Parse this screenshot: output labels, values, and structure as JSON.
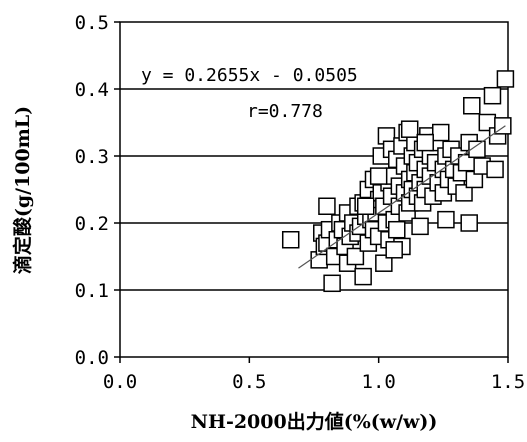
{
  "chart_data": {
    "type": "scatter",
    "xlabel": "NH-2000出力値(%(w/w))",
    "ylabel": "滴定酸(g/100mL)",
    "xlim": [
      0.0,
      1.5
    ],
    "ylim": [
      0.0,
      0.5
    ],
    "x_ticks": [
      "0.0",
      "0.5",
      "1.0",
      "1.5"
    ],
    "y_ticks": [
      "0.0",
      "0.1",
      "0.2",
      "0.3",
      "0.4",
      "0.5"
    ],
    "grid": "horizontal",
    "marker": "open-square",
    "annotations": {
      "equation": "y = 0.2655x - 0.0505",
      "r": "r=0.778"
    },
    "trendline": {
      "slope": 0.2655,
      "intercept": -0.0505,
      "x_range": [
        0.69,
        1.49
      ]
    },
    "points": [
      [
        0.66,
        0.175
      ],
      [
        0.77,
        0.145
      ],
      [
        0.78,
        0.185
      ],
      [
        0.79,
        0.165
      ],
      [
        0.8,
        0.17
      ],
      [
        0.8,
        0.225
      ],
      [
        0.81,
        0.19
      ],
      [
        0.82,
        0.11
      ],
      [
        0.83,
        0.15
      ],
      [
        0.84,
        0.175
      ],
      [
        0.85,
        0.2
      ],
      [
        0.86,
        0.19
      ],
      [
        0.87,
        0.165
      ],
      [
        0.88,
        0.14
      ],
      [
        0.88,
        0.215
      ],
      [
        0.89,
        0.18
      ],
      [
        0.9,
        0.2
      ],
      [
        0.91,
        0.15
      ],
      [
        0.92,
        0.225
      ],
      [
        0.92,
        0.185
      ],
      [
        0.93,
        0.195
      ],
      [
        0.94,
        0.23
      ],
      [
        0.94,
        0.12
      ],
      [
        0.95,
        0.21
      ],
      [
        0.96,
        0.17
      ],
      [
        0.96,
        0.25
      ],
      [
        0.97,
        0.205
      ],
      [
        0.98,
        0.19
      ],
      [
        0.98,
        0.265
      ],
      [
        0.99,
        0.215
      ],
      [
        1.0,
        0.18
      ],
      [
        1.0,
        0.235
      ],
      [
        1.01,
        0.245
      ],
      [
        1.01,
        0.3
      ],
      [
        1.02,
        0.225
      ],
      [
        1.02,
        0.14
      ],
      [
        1.03,
        0.33
      ],
      [
        1.03,
        0.2
      ],
      [
        1.04,
        0.26
      ],
      [
        1.04,
        0.175
      ],
      [
        1.05,
        0.31
      ],
      [
        1.05,
        0.24
      ],
      [
        1.06,
        0.205
      ],
      [
        1.06,
        0.27
      ],
      [
        1.07,
        0.295
      ],
      [
        1.07,
        0.19
      ],
      [
        1.08,
        0.225
      ],
      [
        1.08,
        0.255
      ],
      [
        1.09,
        0.165
      ],
      [
        1.09,
        0.315
      ],
      [
        1.1,
        0.245
      ],
      [
        1.1,
        0.285
      ],
      [
        1.11,
        0.215
      ],
      [
        1.11,
        0.335
      ],
      [
        1.12,
        0.265
      ],
      [
        1.12,
        0.23
      ],
      [
        1.13,
        0.3
      ],
      [
        1.13,
        0.25
      ],
      [
        1.14,
        0.275
      ],
      [
        1.14,
        0.32
      ],
      [
        1.15,
        0.24
      ],
      [
        1.15,
        0.29
      ],
      [
        1.16,
        0.26
      ],
      [
        1.17,
        0.31
      ],
      [
        1.17,
        0.23
      ],
      [
        1.18,
        0.28
      ],
      [
        1.18,
        0.25
      ],
      [
        1.19,
        0.33
      ],
      [
        1.2,
        0.27
      ],
      [
        1.2,
        0.3
      ],
      [
        1.21,
        0.24
      ],
      [
        1.22,
        0.29
      ],
      [
        1.23,
        0.26
      ],
      [
        1.23,
        0.32
      ],
      [
        1.24,
        0.335
      ],
      [
        1.25,
        0.28
      ],
      [
        1.25,
        0.245
      ],
      [
        1.26,
        0.3
      ],
      [
        1.27,
        0.265
      ],
      [
        1.28,
        0.31
      ],
      [
        1.29,
        0.28
      ],
      [
        1.3,
        0.255
      ],
      [
        1.31,
        0.3
      ],
      [
        1.32,
        0.275
      ],
      [
        1.33,
        0.245
      ],
      [
        1.34,
        0.29
      ],
      [
        1.35,
        0.2
      ],
      [
        1.35,
        0.32
      ],
      [
        1.36,
        0.375
      ],
      [
        1.37,
        0.265
      ],
      [
        1.38,
        0.31
      ],
      [
        1.4,
        0.285
      ],
      [
        1.42,
        0.35
      ],
      [
        1.44,
        0.39
      ],
      [
        1.45,
        0.28
      ],
      [
        1.46,
        0.33
      ],
      [
        1.48,
        0.345
      ],
      [
        1.49,
        0.415
      ],
      [
        1.16,
        0.195
      ],
      [
        1.06,
        0.16
      ],
      [
        0.95,
        0.225
      ],
      [
        1.12,
        0.34
      ],
      [
        1.26,
        0.205
      ],
      [
        1.18,
        0.32
      ],
      [
        1.0,
        0.27
      ]
    ]
  }
}
